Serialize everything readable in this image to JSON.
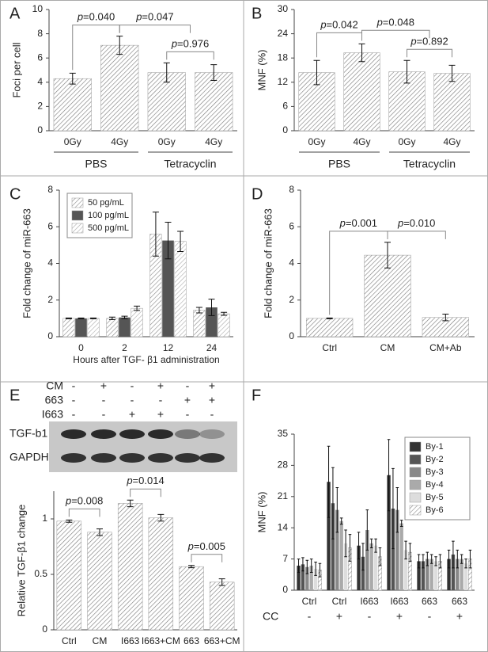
{
  "chart_data": [
    {
      "type": "bar",
      "panel": "A",
      "ylabel": "Foci per cell",
      "categories": [
        "0Gy",
        "4Gy",
        "0Gy",
        "4Gy"
      ],
      "groups": [
        "PBS",
        "Tetracyclin"
      ],
      "values": [
        4.3,
        7.05,
        4.8,
        4.8
      ],
      "errors": [
        0.45,
        0.75,
        0.8,
        0.65
      ],
      "color": "#777777",
      "hatch": true,
      "ylim": [
        0,
        10
      ],
      "yticks": [
        0,
        2,
        4,
        6,
        8,
        10
      ],
      "annotations": [
        {
          "label": "p=0.040",
          "from": 0,
          "to": 1
        },
        {
          "label": "p=0.976",
          "from": 2,
          "to": 3
        },
        {
          "label": "p=0.047",
          "from": 1,
          "to": 3
        }
      ]
    },
    {
      "type": "bar",
      "panel": "B",
      "ylabel": "MNF (%)",
      "categories": [
        "0Gy",
        "4Gy",
        "0Gy",
        "4Gy"
      ],
      "groups": [
        "PBS",
        "Tetracyclin"
      ],
      "values": [
        14.4,
        19.3,
        14.6,
        14.2
      ],
      "errors": [
        3.0,
        2.2,
        2.8,
        2.0
      ],
      "color": "#777777",
      "hatch": true,
      "ylim": [
        0,
        30
      ],
      "yticks": [
        0,
        6,
        12,
        18,
        24,
        30
      ],
      "annotations": [
        {
          "label": "p=0.042",
          "from": 0,
          "to": 1
        },
        {
          "label": "p=0.892",
          "from": 2,
          "to": 3
        },
        {
          "label": "p=0.048",
          "from": 1,
          "to": 3
        }
      ]
    },
    {
      "type": "bar",
      "panel": "C",
      "ylabel": "Fold change of miR-663",
      "xlabel": "Hours after TGF- β1 administration",
      "categories": [
        "0",
        "2",
        "12",
        "24"
      ],
      "legend": "upper left",
      "series": [
        {
          "name": "50 pg/mL",
          "color": "#888888",
          "hatch": true,
          "values": [
            1.0,
            1.0,
            5.6,
            1.45
          ],
          "errors": [
            0.02,
            0.07,
            1.2,
            0.15
          ]
        },
        {
          "name": "100 pg/mL",
          "color": "#555555",
          "values": [
            1.0,
            1.05,
            5.25,
            1.6
          ],
          "errors": [
            0.02,
            0.07,
            1.0,
            0.45
          ]
        },
        {
          "name": "500 pg/mL",
          "color": "#aaaaaa",
          "hatch": true,
          "values": [
            1.0,
            1.55,
            5.2,
            1.25
          ],
          "errors": [
            0.02,
            0.12,
            0.55,
            0.08
          ]
        }
      ],
      "ylim": [
        0,
        8
      ],
      "yticks": [
        0,
        2,
        4,
        6,
        8
      ]
    },
    {
      "type": "bar",
      "panel": "D",
      "ylabel": "Fold change of miR-663",
      "categories": [
        "Ctrl",
        "CM",
        "CM+Ab"
      ],
      "values": [
        1.0,
        4.45,
        1.05
      ],
      "errors": [
        0.02,
        0.7,
        0.18
      ],
      "color": "#777777",
      "hatch": true,
      "ylim": [
        0,
        8
      ],
      "yticks": [
        0,
        2,
        4,
        6,
        8
      ],
      "annotations": [
        {
          "label": "p=0.001",
          "from": 0,
          "to": 1
        },
        {
          "label": "p=0.010",
          "from": 1,
          "to": 2
        }
      ]
    },
    {
      "type": "bar",
      "panel": "E",
      "ylabel": "Relative TGF-β1 change",
      "categories": [
        "Ctrl",
        "CM",
        "I663",
        "I663+CM",
        "663",
        "663+CM"
      ],
      "values": [
        0.98,
        0.88,
        1.14,
        1.01,
        0.57,
        0.43
      ],
      "errors": [
        0.01,
        0.03,
        0.03,
        0.03,
        0.01,
        0.03
      ],
      "color": "#777777",
      "hatch": true,
      "ylim": [
        0,
        1.25
      ],
      "yticks": [
        0,
        0.5,
        1
      ],
      "annotations": [
        {
          "label": "p=0.008",
          "from": 0,
          "to": 1
        },
        {
          "label": "p=0.014",
          "from": 2,
          "to": 3
        },
        {
          "label": "p=0.005",
          "from": 4,
          "to": 5
        }
      ]
    },
    {
      "type": "bar",
      "panel": "F",
      "ylabel": "MNF (%)",
      "categories": [
        "Ctrl",
        "Ctrl",
        "I663",
        "I663",
        "663",
        "663"
      ],
      "cc_label": "CC",
      "cc": [
        "-",
        "+",
        "-",
        "+",
        "-",
        "+"
      ],
      "legend": "upper right",
      "series": [
        {
          "name": "By-1",
          "color": "#333333",
          "values": [
            5.5,
            24.3,
            10,
            25.8,
            6.5,
            7
          ],
          "errors": [
            1.5,
            8,
            3,
            8,
            1.5,
            2
          ]
        },
        {
          "name": "By-2",
          "color": "#555555",
          "values": [
            5.8,
            19.5,
            7.5,
            18.3,
            6.5,
            8
          ],
          "errors": [
            1.5,
            8,
            3,
            9,
            1.5,
            3
          ]
        },
        {
          "name": "By-3",
          "color": "#888888",
          "values": [
            5.2,
            18,
            13.5,
            18,
            7,
            7
          ],
          "errors": [
            1.5,
            5,
            4.5,
            5,
            1.5,
            2
          ]
        },
        {
          "name": "By-4",
          "color": "#aaaaaa",
          "values": [
            5.5,
            15.5,
            10.5,
            15,
            7,
            7
          ],
          "errors": [
            1.5,
            0.7,
            1,
            0.7,
            1,
            1
          ]
        },
        {
          "name": "By-5",
          "color": "#dddddd",
          "values": [
            4.8,
            10.5,
            10,
            9,
            6.5,
            6
          ],
          "errors": [
            1.5,
            3,
            1.5,
            2,
            1,
            1
          ]
        },
        {
          "name": "By-6",
          "color": "#888888",
          "hatch": true,
          "values": [
            4.5,
            9.5,
            7.5,
            8.5,
            6.5,
            7
          ],
          "errors": [
            1.5,
            3,
            2,
            2,
            1.5,
            2
          ]
        }
      ],
      "ylim": [
        0,
        35
      ],
      "yticks": [
        0,
        7,
        14,
        21,
        28,
        35
      ]
    }
  ],
  "blot": {
    "rows": [
      {
        "label": "CM",
        "signs": [
          "-",
          "+",
          "-",
          "+",
          "-",
          "+"
        ]
      },
      {
        "label": "663",
        "signs": [
          "-",
          "-",
          "-",
          "-",
          "+",
          "+"
        ]
      },
      {
        "label": "I663",
        "signs": [
          "-",
          "-",
          "+",
          "+",
          "-",
          "-"
        ]
      }
    ],
    "bands": [
      "TGF-b1",
      "GAPDH"
    ]
  }
}
